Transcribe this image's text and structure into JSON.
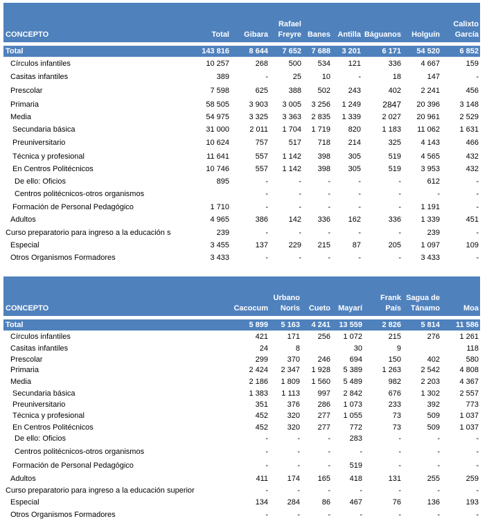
{
  "table1": {
    "headers": [
      "CONCEPTO",
      "Total",
      "Gibara",
      "Rafael Freyre",
      "Banes",
      "Antilla",
      "Báguanos",
      "Holguín",
      "Calixto García"
    ],
    "total": [
      "Total",
      "143 816",
      "8 644",
      "7 652",
      "7 688",
      "3 201",
      "6 171",
      "54 520",
      "6 852"
    ],
    "rows": [
      {
        "label": "Círculos infantiles",
        "indent": 1,
        "values": [
          "10 257",
          "268",
          "500",
          "534",
          "121",
          "336",
          "4 667",
          "159"
        ]
      },
      {
        "label": "Casitas infantiles",
        "indent": 1,
        "values": [
          "389",
          "-",
          "25",
          "10",
          "-",
          "18",
          "147",
          "-"
        ]
      },
      {
        "label": "Prescolar",
        "indent": 1,
        "values": [
          "7 598",
          "625",
          "388",
          "502",
          "243",
          "402",
          "2 241",
          "456"
        ]
      },
      {
        "label": "Primaria",
        "indent": 1,
        "values": [
          "58 505",
          "3 903",
          "3 005",
          "3 256",
          "1 249",
          "2847",
          "20 396",
          "3 148"
        ]
      },
      {
        "label": "Media",
        "indent": 1,
        "values": [
          "54 975",
          "3 325",
          "3 363",
          "2 835",
          "1 339",
          "2 027",
          "20 961",
          "2 529"
        ]
      },
      {
        "label": "Secundaria básica",
        "indent": 2,
        "values": [
          "31 000",
          "2 011",
          "1 704",
          "1 719",
          "820",
          "1 183",
          "11 062",
          "1 631"
        ]
      },
      {
        "label": "Preuniversitario",
        "indent": 2,
        "values": [
          "10 624",
          "757",
          "517",
          "718",
          "214",
          "325",
          "4 143",
          "466"
        ]
      },
      {
        "label": "Técnica y profesional",
        "indent": 2,
        "values": [
          "11 641",
          "557",
          "1 142",
          "398",
          "305",
          "519",
          "4 565",
          "432"
        ]
      },
      {
        "label": "En Centros Politécnicos",
        "indent": 2,
        "values": [
          "10 746",
          "557",
          "1 142",
          "398",
          "305",
          "519",
          "3 953",
          "432"
        ]
      },
      {
        "label": "De ello: Oficios",
        "indent": 3,
        "values": [
          "895",
          "-",
          "-",
          "-",
          "-",
          "-",
          "612",
          "-"
        ]
      },
      {
        "label": "Centros politécnicos-otros organismos",
        "indent": 3,
        "values": [
          "",
          "-",
          "-",
          "-",
          "-",
          "-",
          "-",
          "-"
        ]
      },
      {
        "label": "Formación de Personal Pedagógico",
        "indent": 2,
        "values": [
          "1 710",
          "-",
          "-",
          "-",
          "-",
          "-",
          "1 191",
          "-"
        ]
      },
      {
        "label": "Adultos",
        "indent": 1,
        "values": [
          "4 965",
          "386",
          "142",
          "336",
          "162",
          "336",
          "1 339",
          "451"
        ]
      },
      {
        "label": "Curso preparatorio para ingreso a la  educación s",
        "indent": 0,
        "values": [
          "239",
          "-",
          "-",
          "-",
          "-",
          "-",
          "239",
          "-"
        ]
      },
      {
        "label": "Especial",
        "indent": 1,
        "values": [
          "3 455",
          "137",
          "229",
          "215",
          "87",
          "205",
          "1 097",
          "109"
        ]
      },
      {
        "label": "Otros Organismos Formadores",
        "indent": 1,
        "values": [
          "3 433",
          "-",
          "-",
          "-",
          "-",
          "-",
          "3 433",
          "-"
        ]
      }
    ]
  },
  "table2": {
    "headers": [
      "CONCEPTO",
      "Cacocum",
      "Urbano Noris",
      "Cueto",
      "Mayarí",
      "Frank País",
      "Sagua de Tánamo",
      "Moa"
    ],
    "total": [
      "Total",
      "5 899",
      "5 163",
      "4 241",
      "13 559",
      "2 826",
      "5 814",
      "11 586"
    ],
    "rows": [
      {
        "label": "Círculos infantiles",
        "indent": 1,
        "values": [
          "421",
          "171",
          "256",
          "1 072",
          "215",
          "276",
          "1 261"
        ]
      },
      {
        "label": "Casitas infantiles",
        "indent": 1,
        "values": [
          "24",
          "8",
          "",
          "30",
          "9",
          "",
          "118"
        ]
      },
      {
        "label": "Prescolar",
        "indent": 1,
        "values": [
          "299",
          "370",
          "246",
          "694",
          "150",
          "402",
          "580"
        ]
      },
      {
        "label": "Primaria",
        "indent": 1,
        "values": [
          "2 424",
          "2 347",
          "1 928",
          "5 389",
          "1 263",
          "2 542",
          "4 808"
        ]
      },
      {
        "label": "Media",
        "indent": 1,
        "values": [
          "2 186",
          "1 809",
          "1 560",
          "5 489",
          "982",
          "2 203",
          "4 367"
        ]
      },
      {
        "label": "Secundaria básica",
        "indent": 2,
        "values": [
          "1 383",
          "1 113",
          "997",
          "2 842",
          "676",
          "1 302",
          "2 557"
        ]
      },
      {
        "label": "Preuniversitario",
        "indent": 2,
        "values": [
          "351",
          "376",
          "286",
          "1 073",
          "233",
          "392",
          "773"
        ]
      },
      {
        "label": "Técnica y profesional",
        "indent": 2,
        "values": [
          "452",
          "320",
          "277",
          "1 055",
          "73",
          "509",
          "1 037"
        ]
      },
      {
        "label": "En Centros Politécnicos",
        "indent": 2,
        "values": [
          "452",
          "320",
          "277",
          "772",
          "73",
          "509",
          "1 037"
        ]
      },
      {
        "label": "De ello: Oficios",
        "indent": 3,
        "values": [
          "-",
          "-",
          "-",
          "283",
          "-",
          "-",
          "-"
        ]
      },
      {
        "label": "Centros politécnicos-otros organismos",
        "indent": 3,
        "values": [
          "-",
          "-",
          "-",
          "-",
          "-",
          "-",
          "-"
        ]
      },
      {
        "label": "Formación de Personal Pedagógico",
        "indent": 2,
        "values": [
          "-",
          "-",
          "-",
          "519",
          "-",
          "-",
          "-"
        ]
      },
      {
        "label": "Adultos",
        "indent": 1,
        "values": [
          "411",
          "174",
          "165",
          "418",
          "131",
          "255",
          "259"
        ]
      },
      {
        "label": "Curso preparatorio para ingreso a la  educación superior",
        "indent": 0,
        "values": [
          "-",
          "-",
          "-",
          "-",
          "-",
          "-",
          "-"
        ]
      },
      {
        "label": "Especial",
        "indent": 1,
        "values": [
          "134",
          "284",
          "86",
          "467",
          "76",
          "136",
          "193"
        ]
      },
      {
        "label": "Otros Organismos Formadores",
        "indent": 1,
        "values": [
          "-",
          "-",
          "-",
          "-",
          "-",
          "-",
          "-"
        ]
      }
    ]
  }
}
